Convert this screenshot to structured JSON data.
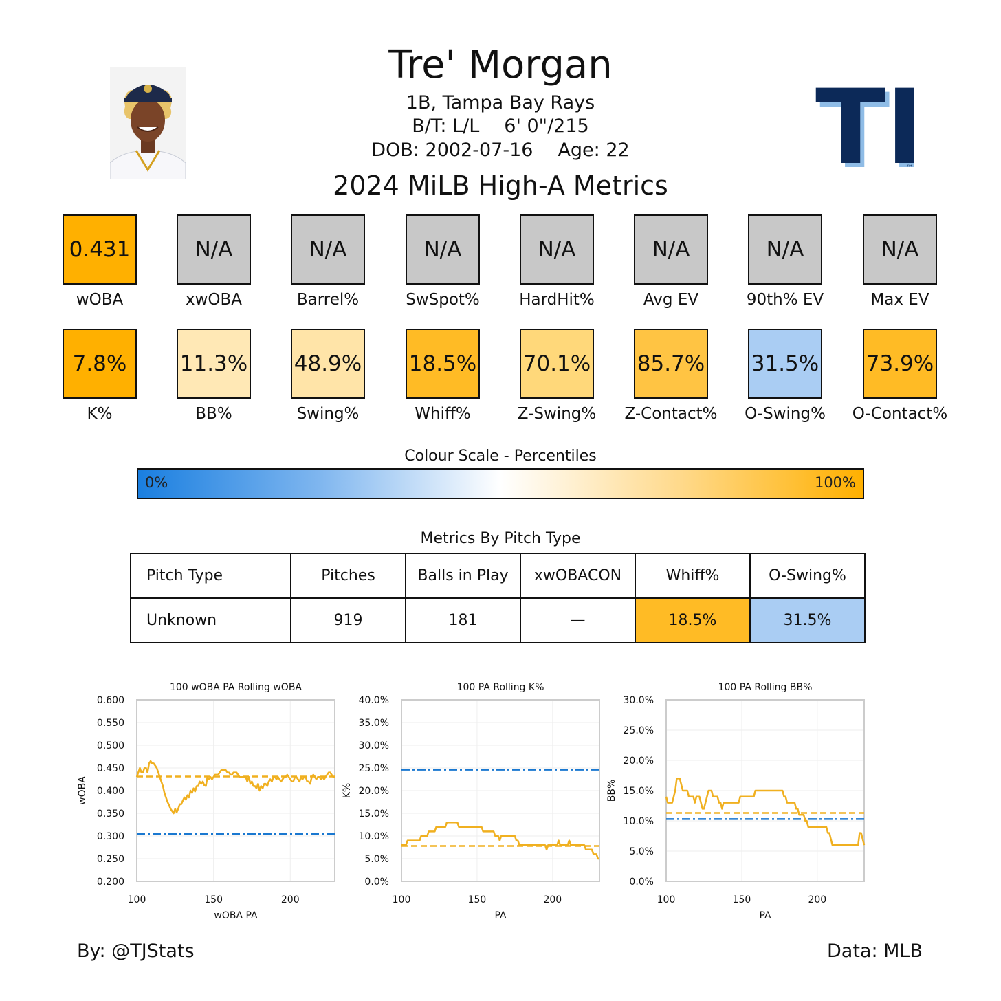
{
  "header": {
    "name": "Tre' Morgan",
    "position_team": "1B, Tampa Bay Rays",
    "bats_throws": "B/T: L/L",
    "height_weight": "6' 0\"/215",
    "dob": "DOB: 2002-07-16",
    "age": "Age: 22",
    "subtitle": "2024 MiLB High-A Metrics",
    "logo_text": "TB",
    "logo_tm": "™"
  },
  "colors": {
    "orange_strong": "#ffb000",
    "orange_mid": "#ffbf2d",
    "orange_light": "#ffd87a",
    "cream": "#ffe8b5",
    "blue_light": "#aacdf3",
    "na_gray": "#c8c8c8",
    "line": "#f0b020",
    "league": "#1a78d0",
    "navy": "#0c2958"
  },
  "metrics_row1": [
    {
      "value": "0.431",
      "label": "wOBA",
      "color": "#ffb000"
    },
    {
      "value": "N/A",
      "label": "xwOBA",
      "color": "#c8c8c8"
    },
    {
      "value": "N/A",
      "label": "Barrel%",
      "color": "#c8c8c8"
    },
    {
      "value": "N/A",
      "label": "SwSpot%",
      "color": "#c8c8c8"
    },
    {
      "value": "N/A",
      "label": "HardHit%",
      "color": "#c8c8c8"
    },
    {
      "value": "N/A",
      "label": "Avg EV",
      "color": "#c8c8c8"
    },
    {
      "value": "N/A",
      "label": "90th% EV",
      "color": "#c8c8c8"
    },
    {
      "value": "N/A",
      "label": "Max EV",
      "color": "#c8c8c8"
    }
  ],
  "metrics_row2": [
    {
      "value": "7.8%",
      "label": "K%",
      "color": "#ffb000"
    },
    {
      "value": "11.3%",
      "label": "BB%",
      "color": "#ffe8b5"
    },
    {
      "value": "48.9%",
      "label": "Swing%",
      "color": "#ffe4a8"
    },
    {
      "value": "18.5%",
      "label": "Whiff%",
      "color": "#ffbb25"
    },
    {
      "value": "70.1%",
      "label": "Z-Swing%",
      "color": "#ffd87a"
    },
    {
      "value": "85.7%",
      "label": "Z-Contact%",
      "color": "#ffc443"
    },
    {
      "value": "31.5%",
      "label": "O-Swing%",
      "color": "#aacdf3"
    },
    {
      "value": "73.9%",
      "label": "O-Contact%",
      "color": "#ffbb25"
    }
  ],
  "color_scale": {
    "title": "Colour Scale - Percentiles",
    "low": "0%",
    "high": "100%"
  },
  "pitch_table": {
    "title": "Metrics By Pitch Type",
    "headers": [
      "Pitch Type",
      "Pitches",
      "Balls in Play",
      "xwOBACON",
      "Whiff%",
      "O-Swing%"
    ],
    "rows": [
      {
        "cells": [
          "Unknown",
          "919",
          "181",
          "—",
          "18.5%",
          "31.5%"
        ]
      }
    ],
    "cell_colors": [
      "#ffffff",
      "#ffffff",
      "#ffffff",
      "#ffffff",
      "#ffbb25",
      "#aacdf3"
    ]
  },
  "chart_data": [
    {
      "type": "line",
      "title": "100 wOBA PA Rolling wOBA",
      "xlabel": "wOBA PA",
      "ylabel": "wOBA",
      "xlim": [
        100,
        229
      ],
      "ylim": [
        0.2,
        0.6
      ],
      "xticks": [
        100,
        150,
        200
      ],
      "xtick_labels": [
        "100",
        "150",
        "200"
      ],
      "yticks": [
        0.2,
        0.25,
        0.3,
        0.35,
        0.4,
        0.45,
        0.5,
        0.55,
        0.6
      ],
      "ytick_labels": [
        "0.200",
        "0.250",
        "0.300",
        "0.350",
        "0.400",
        "0.450",
        "0.500",
        "0.550",
        "0.600"
      ],
      "grid": true,
      "series": {
        "x": [
          100,
          101,
          102,
          103,
          104,
          105,
          106,
          107,
          108,
          109,
          110,
          111,
          112,
          113,
          114,
          115,
          116,
          117,
          118,
          119,
          120,
          121,
          122,
          123,
          124,
          125,
          126,
          127,
          128,
          129,
          130,
          131,
          132,
          133,
          134,
          135,
          136,
          137,
          138,
          139,
          140,
          141,
          142,
          143,
          144,
          145,
          146,
          147,
          148,
          149,
          150,
          151,
          152,
          153,
          154,
          155,
          156,
          157,
          158,
          159,
          160,
          161,
          162,
          163,
          164,
          165,
          166,
          167,
          168,
          169,
          170,
          171,
          172,
          173,
          174,
          175,
          176,
          177,
          178,
          179,
          180,
          181,
          182,
          183,
          184,
          185,
          186,
          187,
          188,
          189,
          190,
          191,
          192,
          193,
          194,
          195,
          196,
          197,
          198,
          199,
          200,
          201,
          202,
          203,
          204,
          205,
          206,
          207,
          208,
          209,
          210,
          211,
          212,
          213,
          214,
          215,
          216,
          217,
          218,
          219,
          220,
          221,
          222,
          223,
          224,
          225,
          226,
          227,
          228,
          229
        ],
        "y": [
          0.43,
          0.44,
          0.45,
          0.44,
          0.44,
          0.45,
          0.45,
          0.44,
          0.46,
          0.465,
          0.46,
          0.46,
          0.455,
          0.45,
          0.44,
          0.43,
          0.42,
          0.41,
          0.395,
          0.385,
          0.375,
          0.368,
          0.36,
          0.355,
          0.35,
          0.36,
          0.352,
          0.36,
          0.37,
          0.37,
          0.378,
          0.385,
          0.38,
          0.39,
          0.385,
          0.4,
          0.395,
          0.405,
          0.398,
          0.41,
          0.41,
          0.42,
          0.415,
          0.42,
          0.412,
          0.41,
          0.43,
          0.425,
          0.43,
          0.425,
          0.43,
          0.435,
          0.435,
          0.435,
          0.44,
          0.445,
          0.445,
          0.445,
          0.445,
          0.44,
          0.44,
          0.435,
          0.435,
          0.44,
          0.44,
          0.44,
          0.435,
          0.43,
          0.43,
          0.43,
          0.43,
          0.43,
          0.42,
          0.43,
          0.415,
          0.42,
          0.41,
          0.41,
          0.405,
          0.415,
          0.4,
          0.41,
          0.405,
          0.415,
          0.415,
          0.41,
          0.42,
          0.425,
          0.42,
          0.43,
          0.43,
          0.425,
          0.43,
          0.425,
          0.42,
          0.425,
          0.43,
          0.43,
          0.435,
          0.43,
          0.425,
          0.42,
          0.42,
          0.43,
          0.43,
          0.425,
          0.42,
          0.43,
          0.425,
          0.43,
          0.43,
          0.42,
          0.42,
          0.415,
          0.43,
          0.435,
          0.43,
          0.425,
          0.43,
          0.43,
          0.425,
          0.43,
          0.425,
          0.43,
          0.435,
          0.44,
          0.44,
          0.435,
          0.43,
          0.43
        ],
        "player_avg": 0.431,
        "league_avg": 0.305
      }
    },
    {
      "type": "line",
      "title": "100 PA Rolling K%",
      "xlabel": "PA",
      "ylabel": "K%",
      "xlim": [
        100,
        231
      ],
      "ylim": [
        0,
        0.4
      ],
      "xticks": [
        100,
        150,
        200
      ],
      "xtick_labels": [
        "100",
        "150",
        "200"
      ],
      "yticks": [
        0,
        0.05,
        0.1,
        0.15,
        0.2,
        0.25,
        0.3,
        0.35,
        0.4
      ],
      "ytick_labels": [
        "0.0%",
        "5.0%",
        "10.0%",
        "15.0%",
        "20.0%",
        "25.0%",
        "30.0%",
        "35.0%",
        "40.0%"
      ],
      "grid": true,
      "series": {
        "x": [
          100,
          101,
          102,
          103,
          104,
          105,
          106,
          107,
          108,
          109,
          110,
          111,
          112,
          113,
          114,
          115,
          116,
          117,
          118,
          119,
          120,
          121,
          122,
          123,
          124,
          125,
          126,
          127,
          128,
          129,
          130,
          131,
          132,
          133,
          134,
          135,
          136,
          137,
          138,
          139,
          140,
          141,
          142,
          143,
          144,
          145,
          146,
          147,
          148,
          149,
          150,
          151,
          152,
          153,
          154,
          155,
          156,
          157,
          158,
          159,
          160,
          161,
          162,
          163,
          164,
          165,
          166,
          167,
          168,
          169,
          170,
          171,
          172,
          173,
          174,
          175,
          176,
          177,
          178,
          179,
          180,
          181,
          182,
          183,
          184,
          185,
          186,
          187,
          188,
          189,
          190,
          191,
          192,
          193,
          194,
          195,
          196,
          197,
          198,
          199,
          200,
          201,
          202,
          203,
          204,
          205,
          206,
          207,
          208,
          209,
          210,
          211,
          212,
          213,
          214,
          215,
          216,
          217,
          218,
          219,
          220,
          221,
          222,
          223,
          224,
          225,
          226,
          227,
          228,
          229,
          230,
          231
        ],
        "y": [
          0.08,
          0.08,
          0.08,
          0.08,
          0.09,
          0.09,
          0.09,
          0.09,
          0.09,
          0.09,
          0.09,
          0.09,
          0.09,
          0.1,
          0.1,
          0.1,
          0.1,
          0.1,
          0.11,
          0.11,
          0.11,
          0.11,
          0.11,
          0.12,
          0.12,
          0.12,
          0.12,
          0.12,
          0.12,
          0.12,
          0.13,
          0.13,
          0.13,
          0.13,
          0.13,
          0.13,
          0.13,
          0.13,
          0.12,
          0.12,
          0.12,
          0.12,
          0.12,
          0.12,
          0.12,
          0.12,
          0.12,
          0.12,
          0.12,
          0.12,
          0.12,
          0.12,
          0.12,
          0.12,
          0.11,
          0.11,
          0.11,
          0.11,
          0.11,
          0.11,
          0.11,
          0.11,
          0.1,
          0.1,
          0.1,
          0.09,
          0.1,
          0.1,
          0.1,
          0.1,
          0.1,
          0.1,
          0.1,
          0.1,
          0.1,
          0.1,
          0.09,
          0.09,
          0.08,
          0.08,
          0.08,
          0.08,
          0.08,
          0.08,
          0.08,
          0.08,
          0.08,
          0.08,
          0.08,
          0.08,
          0.08,
          0.08,
          0.08,
          0.08,
          0.08,
          0.08,
          0.07,
          0.08,
          0.08,
          0.08,
          0.08,
          0.08,
          0.08,
          0.08,
          0.09,
          0.08,
          0.08,
          0.08,
          0.08,
          0.08,
          0.08,
          0.09,
          0.08,
          0.08,
          0.08,
          0.08,
          0.08,
          0.08,
          0.08,
          0.08,
          0.08,
          0.08,
          0.07,
          0.07,
          0.07,
          0.07,
          0.07,
          0.06,
          0.06,
          0.06,
          0.05,
          0.05
        ],
        "player_avg": 0.078,
        "league_avg": 0.246
      }
    },
    {
      "type": "line",
      "title": "100 PA Rolling BB%",
      "xlabel": "PA",
      "ylabel": "BB%",
      "xlim": [
        100,
        231
      ],
      "ylim": [
        0,
        0.3
      ],
      "xticks": [
        100,
        150,
        200
      ],
      "xtick_labels": [
        "100",
        "150",
        "200"
      ],
      "yticks": [
        0,
        0.05,
        0.1,
        0.15,
        0.2,
        0.25,
        0.3
      ],
      "ytick_labels": [
        "0.0%",
        "5.0%",
        "10.0%",
        "15.0%",
        "20.0%",
        "25.0%",
        "30.0%"
      ],
      "grid": true,
      "series": {
        "x": [
          100,
          101,
          102,
          103,
          104,
          105,
          106,
          107,
          108,
          109,
          110,
          111,
          112,
          113,
          114,
          115,
          116,
          117,
          118,
          119,
          120,
          121,
          122,
          123,
          124,
          125,
          126,
          127,
          128,
          129,
          130,
          131,
          132,
          133,
          134,
          135,
          136,
          137,
          138,
          139,
          140,
          141,
          142,
          143,
          144,
          145,
          146,
          147,
          148,
          149,
          150,
          151,
          152,
          153,
          154,
          155,
          156,
          157,
          158,
          159,
          160,
          161,
          162,
          163,
          164,
          165,
          166,
          167,
          168,
          169,
          170,
          171,
          172,
          173,
          174,
          175,
          176,
          177,
          178,
          179,
          180,
          181,
          182,
          183,
          184,
          185,
          186,
          187,
          188,
          189,
          190,
          191,
          192,
          193,
          194,
          195,
          196,
          197,
          198,
          199,
          200,
          201,
          202,
          203,
          204,
          205,
          206,
          207,
          208,
          209,
          210,
          211,
          212,
          213,
          214,
          215,
          216,
          217,
          218,
          219,
          220,
          221,
          222,
          223,
          224,
          225,
          226,
          227,
          228,
          229,
          230,
          231
        ],
        "y": [
          0.14,
          0.13,
          0.13,
          0.13,
          0.13,
          0.14,
          0.15,
          0.17,
          0.17,
          0.17,
          0.16,
          0.15,
          0.15,
          0.15,
          0.15,
          0.14,
          0.14,
          0.14,
          0.14,
          0.13,
          0.14,
          0.14,
          0.14,
          0.13,
          0.12,
          0.12,
          0.13,
          0.14,
          0.15,
          0.15,
          0.15,
          0.14,
          0.14,
          0.14,
          0.14,
          0.13,
          0.13,
          0.12,
          0.13,
          0.13,
          0.13,
          0.13,
          0.13,
          0.13,
          0.13,
          0.13,
          0.13,
          0.13,
          0.13,
          0.14,
          0.14,
          0.14,
          0.14,
          0.14,
          0.14,
          0.14,
          0.14,
          0.14,
          0.14,
          0.15,
          0.15,
          0.15,
          0.15,
          0.15,
          0.15,
          0.15,
          0.15,
          0.15,
          0.15,
          0.15,
          0.15,
          0.15,
          0.15,
          0.15,
          0.15,
          0.15,
          0.15,
          0.15,
          0.14,
          0.14,
          0.13,
          0.13,
          0.13,
          0.13,
          0.13,
          0.13,
          0.12,
          0.12,
          0.11,
          0.11,
          0.11,
          0.11,
          0.1,
          0.1,
          0.09,
          0.09,
          0.09,
          0.09,
          0.09,
          0.09,
          0.09,
          0.09,
          0.09,
          0.09,
          0.09,
          0.09,
          0.09,
          0.08,
          0.08,
          0.07,
          0.06,
          0.06,
          0.06,
          0.06,
          0.06,
          0.06,
          0.06,
          0.06,
          0.06,
          0.06,
          0.06,
          0.06,
          0.06,
          0.06,
          0.06,
          0.06,
          0.06,
          0.06,
          0.08,
          0.08,
          0.07,
          0.06
        ],
        "player_avg": 0.113,
        "league_avg": 0.103
      }
    }
  ],
  "footer": {
    "left": "By: @TJStats",
    "right": "Data: MLB"
  }
}
